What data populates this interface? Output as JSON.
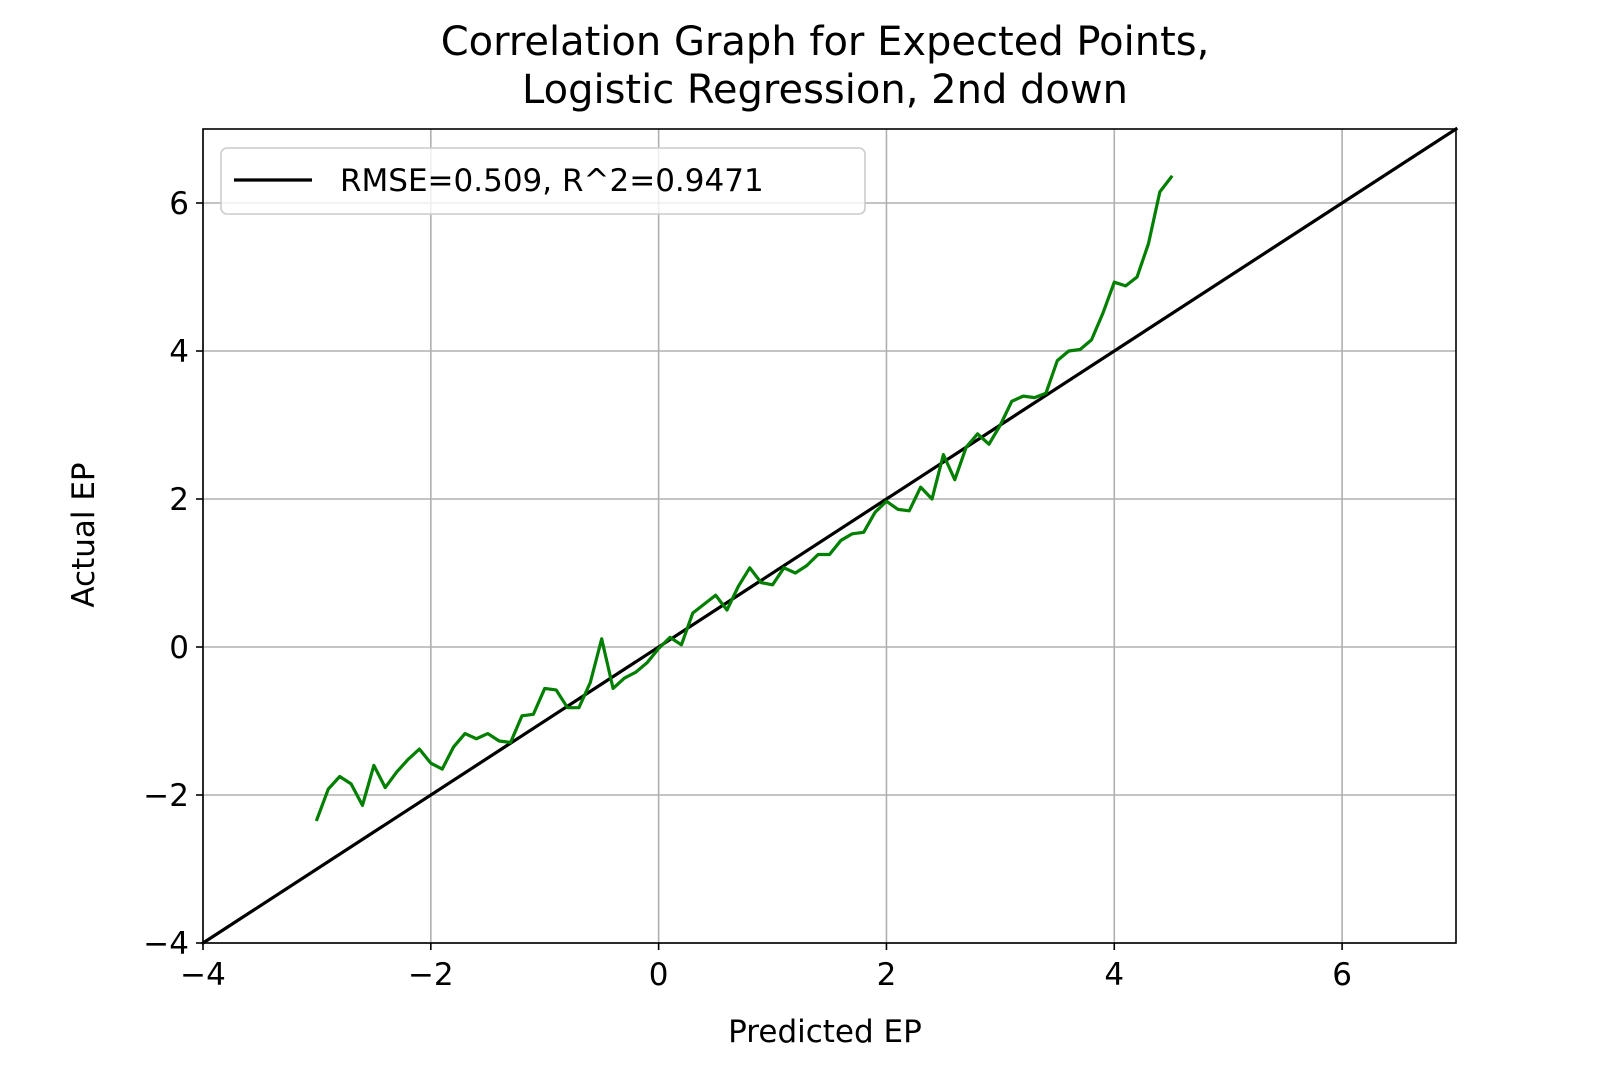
{
  "chart_data": {
    "type": "line",
    "title": "Correlation Graph for Expected Points,",
    "subtitle": "Logistic Regression, 2nd down",
    "xlabel": "Predicted EP",
    "ylabel": "Actual EP",
    "xlim": [
      -4,
      7
    ],
    "ylim": [
      -4,
      7
    ],
    "xticks": [
      -4,
      -2,
      0,
      2,
      4,
      6
    ],
    "yticks": [
      -4,
      -2,
      0,
      2,
      4,
      6
    ],
    "xtick_labels": [
      "−4",
      "−2",
      "0",
      "2",
      "4",
      "6"
    ],
    "ytick_labels": [
      "−4",
      "−2",
      "0",
      "2",
      "4",
      "6"
    ],
    "grid": true,
    "legend_position": "top-left",
    "series": [
      {
        "name": "RMSE=0.509, R^2=0.9471",
        "color": "#000000",
        "x": [
          -4,
          7
        ],
        "y": [
          -4,
          7
        ]
      },
      {
        "color": "#007f00",
        "x": [
          -3.0,
          -2.9,
          -2.8,
          -2.7,
          -2.6,
          -2.5,
          -2.4,
          -2.3,
          -2.2,
          -2.1,
          -2.0,
          -1.9,
          -1.8,
          -1.7,
          -1.6,
          -1.5,
          -1.4,
          -1.3,
          -1.2,
          -1.1,
          -1.0,
          -0.9,
          -0.8,
          -0.7,
          -0.6,
          -0.5,
          -0.4,
          -0.3,
          -0.2,
          -0.1,
          0.0,
          0.1,
          0.2,
          0.3,
          0.4,
          0.5,
          0.6,
          0.7,
          0.8,
          0.9,
          1.0,
          1.1,
          1.2,
          1.3,
          1.4,
          1.5,
          1.6,
          1.7,
          1.8,
          1.9,
          2.0,
          2.1,
          2.2,
          2.3,
          2.4,
          2.5,
          2.6,
          2.7,
          2.8,
          2.9,
          3.0,
          3.1,
          3.2,
          3.3,
          3.4,
          3.5,
          3.6,
          3.7,
          3.8,
          3.9,
          4.0,
          4.1,
          4.2,
          4.3,
          4.4,
          4.5
        ],
        "y": [
          -2.33,
          -1.92,
          -1.75,
          -1.85,
          -2.14,
          -1.6,
          -1.9,
          -1.69,
          -1.52,
          -1.38,
          -1.57,
          -1.65,
          -1.35,
          -1.17,
          -1.24,
          -1.17,
          -1.27,
          -1.29,
          -0.93,
          -0.91,
          -0.56,
          -0.58,
          -0.82,
          -0.82,
          -0.48,
          0.11,
          -0.56,
          -0.42,
          -0.34,
          -0.21,
          -0.02,
          0.13,
          0.03,
          0.46,
          0.58,
          0.7,
          0.5,
          0.82,
          1.07,
          0.87,
          0.84,
          1.07,
          1.0,
          1.1,
          1.25,
          1.25,
          1.44,
          1.53,
          1.55,
          1.82,
          1.97,
          1.86,
          1.84,
          2.16,
          2.0,
          2.6,
          2.26,
          2.7,
          2.88,
          2.74,
          3.0,
          3.32,
          3.39,
          3.37,
          3.43,
          3.87,
          4.0,
          4.02,
          4.15,
          4.51,
          4.93,
          4.88,
          5.0,
          5.45,
          6.15,
          6.35
        ]
      }
    ]
  }
}
